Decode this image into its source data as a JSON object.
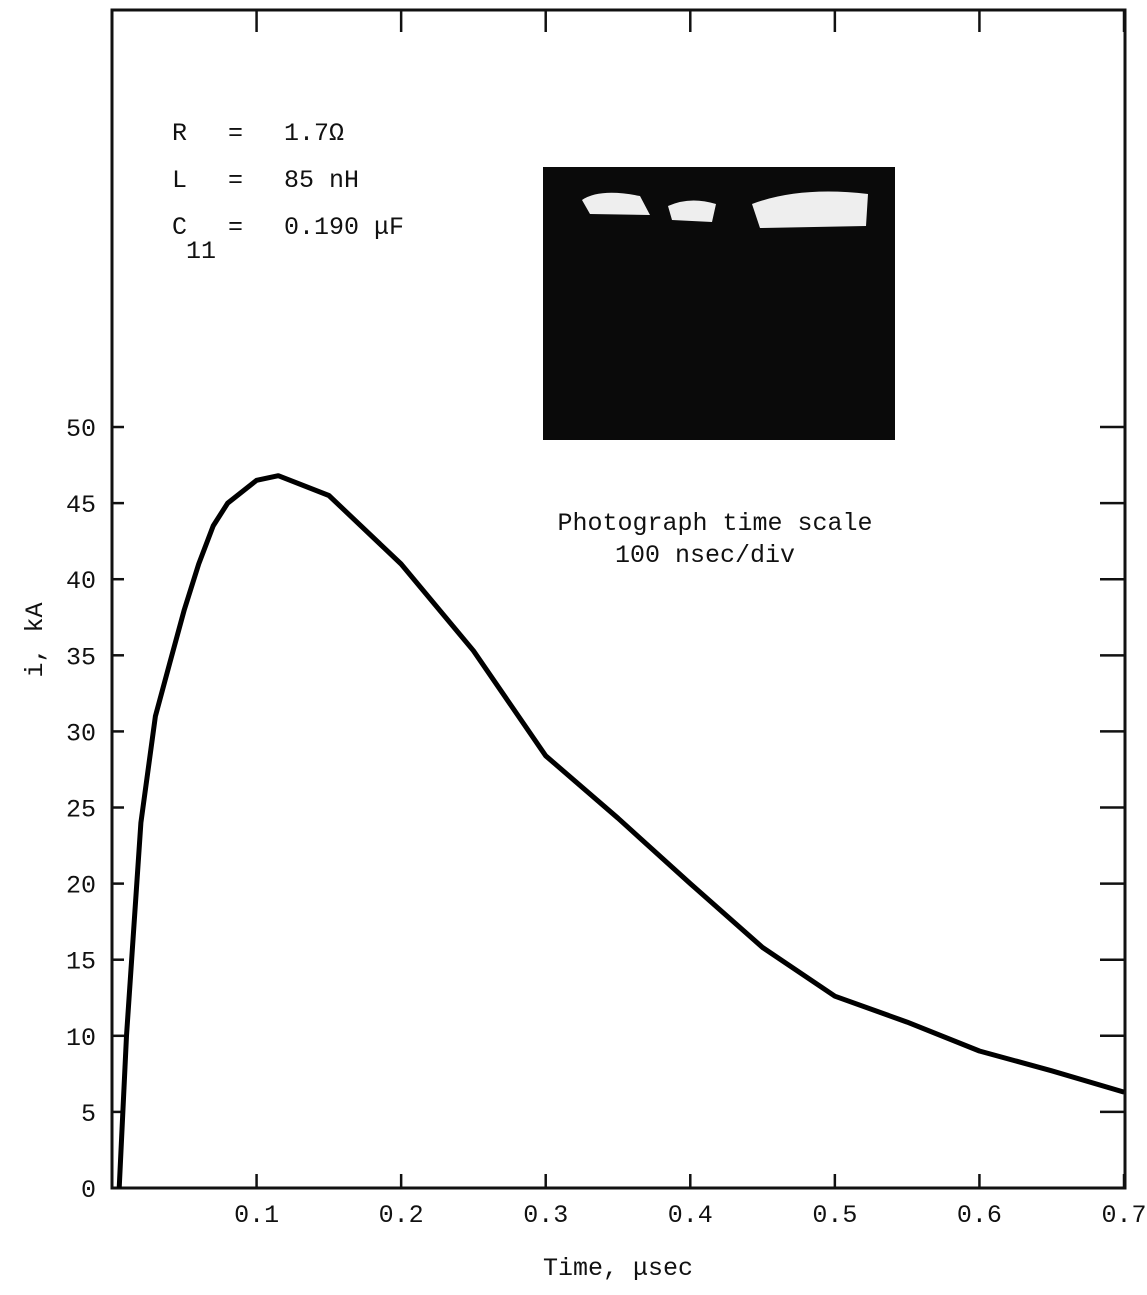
{
  "chart_data": {
    "type": "line",
    "x_label": "Time, μsec",
    "y_label": "i, kA",
    "x": [
      0.005,
      0.01,
      0.02,
      0.03,
      0.04,
      0.05,
      0.06,
      0.07,
      0.08,
      0.1,
      0.115,
      0.15,
      0.2,
      0.25,
      0.3,
      0.35,
      0.4,
      0.45,
      0.5,
      0.55,
      0.6,
      0.65,
      0.7
    ],
    "values": [
      0,
      10,
      24,
      31,
      34.5,
      38,
      41,
      43.5,
      45,
      46.5,
      46.8,
      45.5,
      41,
      35.3,
      28.4,
      24.3,
      20,
      15.8,
      12.6,
      10.9,
      9,
      7.7,
      6.3
    ],
    "color": "#000000",
    "xlim": [
      0,
      0.7
    ],
    "ylim": [
      0,
      77.4
    ],
    "xticks": [
      0.1,
      0.2,
      0.3,
      0.4,
      0.5,
      0.6,
      0.7
    ],
    "yticks": [
      0,
      5,
      10,
      15,
      20,
      25,
      30,
      35,
      40,
      45,
      50
    ],
    "parameters": [
      {
        "name": "R",
        "eq": "=",
        "value": "1.7Ω"
      },
      {
        "name": "L",
        "eq": "=",
        "value": "85 nH"
      },
      {
        "name": "C",
        "sub": "11",
        "eq": "=",
        "value": "0.190 μF"
      }
    ],
    "photo_caption": [
      "Photograph time scale",
      "100 nsec/div"
    ]
  }
}
